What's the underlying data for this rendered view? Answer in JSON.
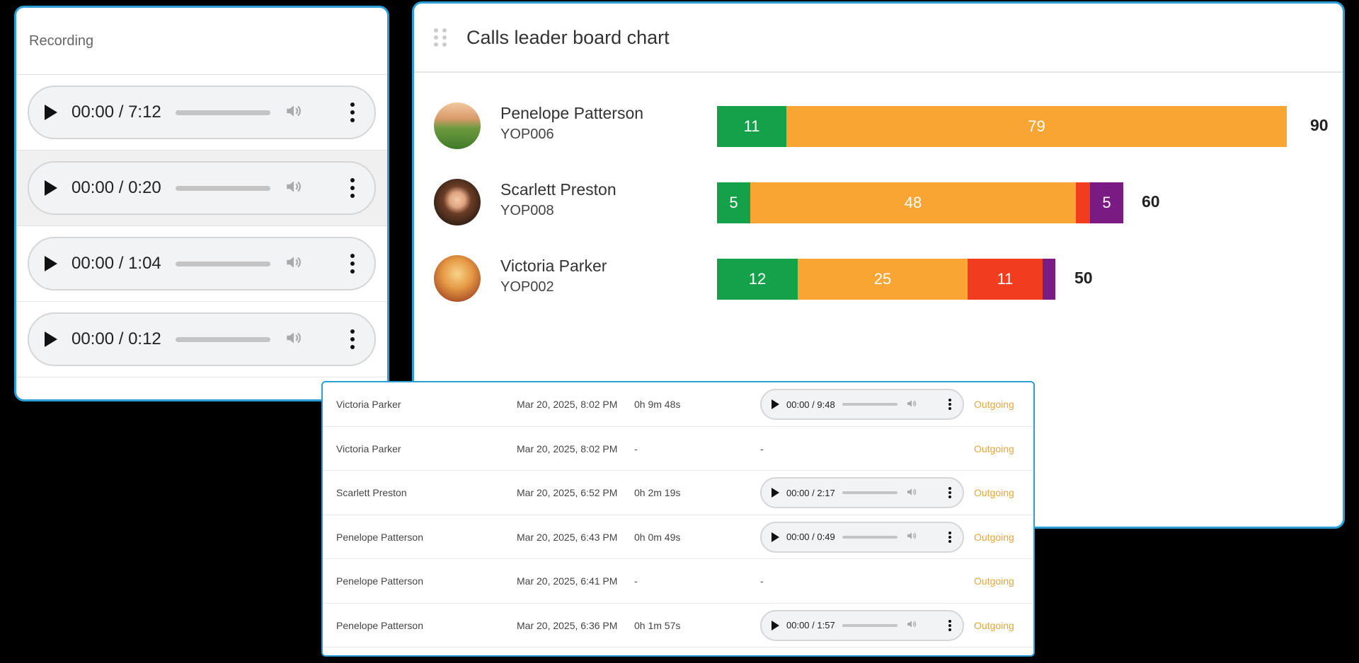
{
  "recording_panel": {
    "title": "Recording",
    "players": [
      {
        "time": "00:00 / 7:12"
      },
      {
        "time": "00:00 / 0:20"
      },
      {
        "time": "00:00 / 1:04"
      },
      {
        "time": "00:00 / 0:12"
      }
    ]
  },
  "leaderboard": {
    "title": "Calls leader board chart",
    "rows": [
      {
        "name": "Penelope Patterson",
        "id": "YOP006",
        "total": "90",
        "segments": [
          {
            "value": "11",
            "color": "#15a04a"
          },
          {
            "value": "79",
            "color": "#f8a534"
          }
        ]
      },
      {
        "name": "Scarlett Preston",
        "id": "YOP008",
        "total": "60",
        "segments": [
          {
            "value": "5",
            "color": "#15a04a"
          },
          {
            "value": "48",
            "color": "#f8a534"
          },
          {
            "value": "",
            "color": "#f13c20"
          },
          {
            "value": "5",
            "color": "#7a1b83"
          }
        ]
      },
      {
        "name": "Victoria Parker",
        "id": "YOP002",
        "total": "50",
        "segments": [
          {
            "value": "12",
            "color": "#15a04a"
          },
          {
            "value": "25",
            "color": "#f8a534"
          },
          {
            "value": "11",
            "color": "#f13c20"
          },
          {
            "value": "",
            "color": "#7a1b83"
          }
        ]
      }
    ]
  },
  "calls_table": {
    "rows": [
      {
        "name": "Victoria Parker",
        "date": "Mar 20, 2025, 8:02 PM",
        "duration": "0h 9m 48s",
        "recording": "00:00 / 9:48",
        "type": "Outgoing"
      },
      {
        "name": "Victoria Parker",
        "date": "Mar 20, 2025, 8:02 PM",
        "duration": "-",
        "recording": "-",
        "type": "Outgoing"
      },
      {
        "name": "Scarlett Preston",
        "date": "Mar 20, 2025, 6:52 PM",
        "duration": "0h 2m 19s",
        "recording": "00:00 / 2:17",
        "type": "Outgoing"
      },
      {
        "name": "Penelope Patterson",
        "date": "Mar 20, 2025, 6:43 PM",
        "duration": "0h 0m 49s",
        "recording": "00:00 / 0:49",
        "type": "Outgoing"
      },
      {
        "name": "Penelope Patterson",
        "date": "Mar 20, 2025, 6:41 PM",
        "duration": "-",
        "recording": "-",
        "type": "Outgoing"
      },
      {
        "name": "Penelope Patterson",
        "date": "Mar 20, 2025, 6:36 PM",
        "duration": "0h 1m 57s",
        "recording": "00:00 / 1:57",
        "type": "Outgoing"
      }
    ]
  },
  "colors": {
    "panel_border": "#2a9fd6",
    "outgoing": "#e8a53a"
  },
  "icons": [
    "play-icon",
    "volume-icon",
    "more-vertical-icon",
    "drag-handle-icon"
  ]
}
